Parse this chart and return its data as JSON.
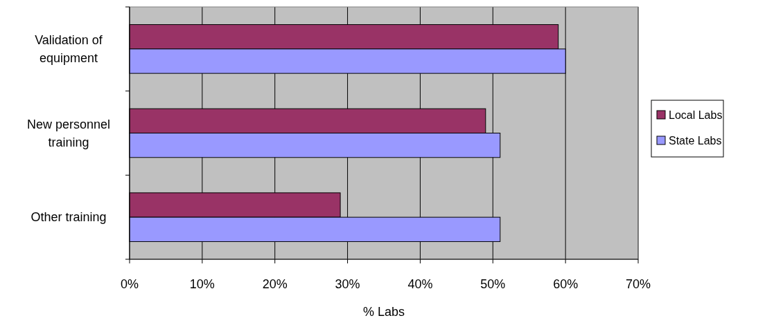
{
  "chart_data": {
    "type": "bar",
    "orientation": "horizontal",
    "xlabel": "% Labs",
    "categories": [
      "Validation of equipment",
      "New personnel training",
      "Other training"
    ],
    "series": [
      {
        "name": "Local Labs",
        "color": "#993366",
        "values": [
          59,
          49,
          29
        ]
      },
      {
        "name": "State Labs",
        "color": "#9999ff",
        "values": [
          60,
          51,
          51
        ]
      }
    ],
    "xlim": [
      0,
      70
    ],
    "xticks": [
      {
        "value": 0,
        "label": "0%"
      },
      {
        "value": 10,
        "label": "10%"
      },
      {
        "value": 20,
        "label": "20%"
      },
      {
        "value": 30,
        "label": "30%"
      },
      {
        "value": 40,
        "label": "40%"
      },
      {
        "value": 50,
        "label": "50%"
      },
      {
        "value": 60,
        "label": "60%"
      },
      {
        "value": 70,
        "label": "70%"
      }
    ],
    "grid": "x",
    "legend": "right"
  }
}
